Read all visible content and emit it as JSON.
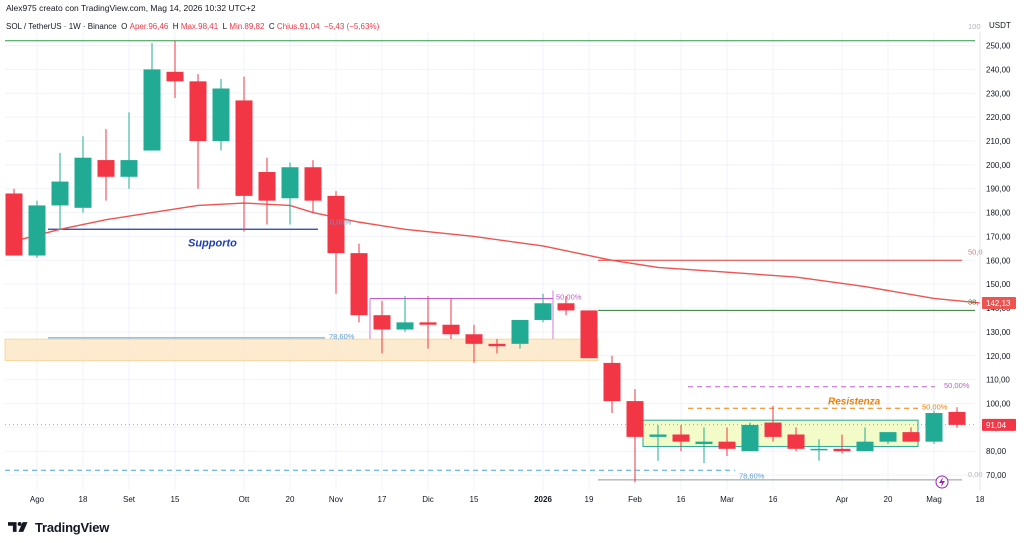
{
  "header": {
    "credit": "Alex975 creato con TradingView.com, Mag 14, 2026 10:32 UTC+2",
    "symbol": "SOL / TetherUS · 1W · Binance",
    "o_label": "O",
    "o_value": "Aper.96,46",
    "h_label": "H",
    "h_value": "Max.98,41",
    "l_label": "L",
    "l_value": "Min.89,82",
    "c_label": "C",
    "c_value": "Chius.91,04",
    "change": "−5,43 (−5,63%)"
  },
  "price_axis": {
    "currency": "USDT",
    "current_price_label": "91,04",
    "ma_price_label": "142,13"
  },
  "annotations": {
    "supporto": "Supporto",
    "resistenza": "Resistenza",
    "fib_0": "0,00%",
    "fib_786_left": "78,60%",
    "fib_50_mid": "50,00%",
    "fib_50_right_top": "50,00%",
    "fib_50_right_mid": "50,00%",
    "fib_786_right": "78,60%",
    "fib_0_right": "0,00",
    "fib_100_right": "100",
    "fib_50_right_far": "50,0",
    "fib_382_right": "38,"
  },
  "chart_data": {
    "type": "candlestick",
    "symbol": "SOL / TetherUS",
    "interval": "1W",
    "exchange": "Binance",
    "y_ticks": [
      70,
      80,
      90,
      100,
      110,
      120,
      130,
      140,
      150,
      160,
      170,
      180,
      190,
      200,
      210,
      220,
      230,
      240,
      250
    ],
    "y_tick_labels": [
      "70,00",
      "80,00",
      "90,00",
      "100,00",
      "110,00",
      "120,00",
      "130,00",
      "140,00",
      "150,00",
      "160,00",
      "170,00",
      "180,00",
      "190,00",
      "200,00",
      "210,00",
      "220,00",
      "230,00",
      "240,00",
      "250,00"
    ],
    "ylim": [
      65,
      254
    ],
    "x_labels": [
      {
        "label": "Ago",
        "i": 1
      },
      {
        "label": "18",
        "i": 3
      },
      {
        "label": "Set",
        "i": 5
      },
      {
        "label": "15",
        "i": 7
      },
      {
        "label": "Ott",
        "i": 10
      },
      {
        "label": "20",
        "i": 12
      },
      {
        "label": "Nov",
        "i": 14
      },
      {
        "label": "17",
        "i": 16
      },
      {
        "label": "Dic",
        "i": 18
      },
      {
        "label": "15",
        "i": 20
      },
      {
        "label": "2026",
        "i": 23
      },
      {
        "label": "19",
        "i": 25
      },
      {
        "label": "Feb",
        "i": 27
      },
      {
        "label": "16",
        "i": 29
      },
      {
        "label": "Mar",
        "i": 31
      },
      {
        "label": "16",
        "i": 33
      },
      {
        "label": "Apr",
        "i": 36
      },
      {
        "label": "20",
        "i": 38
      },
      {
        "label": "Mag",
        "i": 40
      },
      {
        "label": "18",
        "i": 42
      }
    ],
    "candles": [
      {
        "o": 188,
        "h": 190,
        "l": 162,
        "c": 162
      },
      {
        "o": 162,
        "h": 185,
        "l": 161,
        "c": 183
      },
      {
        "o": 183,
        "h": 205,
        "l": 173,
        "c": 193
      },
      {
        "o": 182,
        "h": 212,
        "l": 180,
        "c": 203
      },
      {
        "o": 202,
        "h": 215,
        "l": 185,
        "c": 195
      },
      {
        "o": 195,
        "h": 222,
        "l": 190,
        "c": 202
      },
      {
        "o": 206,
        "h": 251,
        "l": 206,
        "c": 240
      },
      {
        "o": 239,
        "h": 252,
        "l": 228,
        "c": 235
      },
      {
        "o": 235,
        "h": 238,
        "l": 190,
        "c": 210
      },
      {
        "o": 210,
        "h": 236,
        "l": 206,
        "c": 232
      },
      {
        "o": 227,
        "h": 237,
        "l": 172,
        "c": 187
      },
      {
        "o": 197,
        "h": 203,
        "l": 175,
        "c": 185
      },
      {
        "o": 186,
        "h": 201,
        "l": 175,
        "c": 199
      },
      {
        "o": 199,
        "h": 202,
        "l": 180,
        "c": 185
      },
      {
        "o": 187,
        "h": 189,
        "l": 146,
        "c": 163
      },
      {
        "o": 163,
        "h": 167,
        "l": 134,
        "c": 137
      },
      {
        "o": 137,
        "h": 143,
        "l": 121,
        "c": 131
      },
      {
        "o": 131,
        "h": 145,
        "l": 130,
        "c": 134
      },
      {
        "o": 134,
        "h": 145,
        "l": 123,
        "c": 133
      },
      {
        "o": 133,
        "h": 144,
        "l": 127,
        "c": 129
      },
      {
        "o": 129,
        "h": 133,
        "l": 117,
        "c": 125
      },
      {
        "o": 125,
        "h": 127,
        "l": 121,
        "c": 124
      },
      {
        "o": 125,
        "h": 135,
        "l": 123,
        "c": 135
      },
      {
        "o": 135,
        "h": 146,
        "l": 134,
        "c": 142
      },
      {
        "o": 142,
        "h": 145,
        "l": 137,
        "c": 139
      },
      {
        "o": 139,
        "h": 139,
        "l": 120,
        "c": 119
      },
      {
        "o": 117,
        "h": 120,
        "l": 96,
        "c": 101
      },
      {
        "o": 101,
        "h": 106,
        "l": 67,
        "c": 86
      },
      {
        "o": 86,
        "h": 91,
        "l": 76,
        "c": 87
      },
      {
        "o": 87,
        "h": 91,
        "l": 80,
        "c": 84
      },
      {
        "o": 83,
        "h": 90,
        "l": 75,
        "c": 84
      },
      {
        "o": 84,
        "h": 90,
        "l": 78,
        "c": 81
      },
      {
        "o": 80,
        "h": 92,
        "l": 80,
        "c": 91
      },
      {
        "o": 92,
        "h": 99,
        "l": 84,
        "c": 86
      },
      {
        "o": 87,
        "h": 90,
        "l": 80,
        "c": 81
      },
      {
        "o": 81,
        "h": 85,
        "l": 76,
        "c": 81
      },
      {
        "o": 81,
        "h": 87,
        "l": 79,
        "c": 80
      },
      {
        "o": 80,
        "h": 90,
        "l": 80,
        "c": 84
      },
      {
        "o": 84,
        "h": 88,
        "l": 83,
        "c": 88
      },
      {
        "o": 88,
        "h": 90,
        "l": 84,
        "c": 84
      },
      {
        "o": 84,
        "h": 97,
        "l": 83,
        "c": 96
      },
      {
        "o": 96.46,
        "h": 98.41,
        "l": 89.82,
        "c": 91.04
      }
    ],
    "moving_average": [
      {
        "i": 0,
        "v": 168
      },
      {
        "i": 2,
        "v": 173
      },
      {
        "i": 4,
        "v": 177
      },
      {
        "i": 6,
        "v": 180
      },
      {
        "i": 8,
        "v": 183
      },
      {
        "i": 10,
        "v": 184
      },
      {
        "i": 12,
        "v": 183
      },
      {
        "i": 13,
        "v": 180
      },
      {
        "i": 15,
        "v": 176
      },
      {
        "i": 17,
        "v": 173
      },
      {
        "i": 20,
        "v": 170
      },
      {
        "i": 23,
        "v": 166
      },
      {
        "i": 26,
        "v": 160
      },
      {
        "i": 28,
        "v": 157
      },
      {
        "i": 31,
        "v": 155
      },
      {
        "i": 34,
        "v": 153
      },
      {
        "i": 37,
        "v": 149
      },
      {
        "i": 40,
        "v": 144
      },
      {
        "i": 42,
        "v": 142.13
      }
    ],
    "current_price": 91.04,
    "ma_value": 142.13,
    "colors": {
      "up": "#22ab94",
      "down": "#f23645",
      "ma": "#ef5350",
      "support": "#1e3cb4",
      "resist": "#f57c00"
    },
    "levels": {
      "top_green": 252,
      "supporto": 173,
      "fib_786_left": 127.5,
      "orange_zone": [
        118,
        127
      ],
      "fib_50_box": [
        144,
        127
      ],
      "red_line": 160,
      "green_line": 139,
      "purple_dash": 107,
      "orange_dash": 98,
      "cyan_dash": 72,
      "gray_line": 68,
      "yellow_zone": [
        82,
        93
      ]
    }
  }
}
